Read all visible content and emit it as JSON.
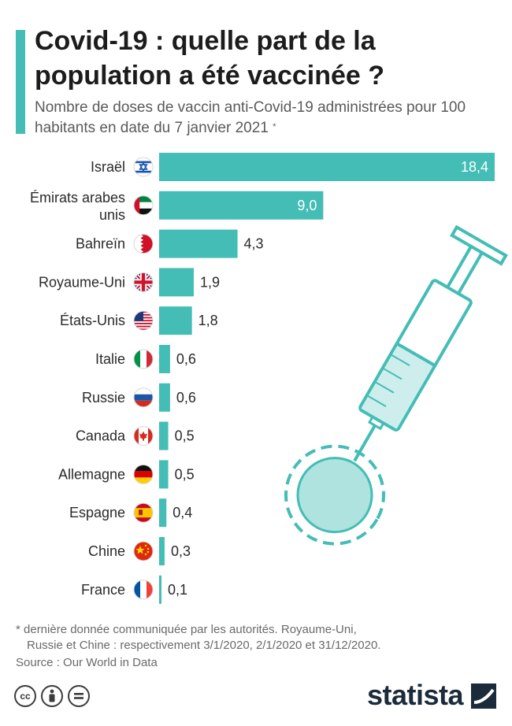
{
  "header": {
    "title": "Covid-19 : quelle part de la population a été vaccinée ?",
    "subtitle": "Nombre de doses de vaccin anti-Covid-19 administrées pour 100 habitants en date du 7 janvier 2021",
    "subtitle_mark": "*"
  },
  "chart_data": {
    "type": "bar",
    "orientation": "horizontal",
    "categories": [
      "Israël",
      "Émirats arabes unis",
      "Bahreïn",
      "Royaume-Uni",
      "États-Unis",
      "Italie",
      "Russie",
      "Canada",
      "Allemagne",
      "Espagne",
      "Chine",
      "France"
    ],
    "values": [
      18.4,
      9.0,
      4.3,
      1.9,
      1.8,
      0.6,
      0.6,
      0.5,
      0.5,
      0.4,
      0.3,
      0.1
    ],
    "value_labels": [
      "18,4",
      "9,0",
      "4,3",
      "1,9",
      "1,8",
      "0,6",
      "0,6",
      "0,5",
      "0,5",
      "0,4",
      "0,3",
      "0,1"
    ],
    "flags": [
      "israel-flag",
      "uae-flag",
      "bahrain-flag",
      "uk-flag",
      "usa-flag",
      "italy-flag",
      "russia-flag",
      "canada-flag",
      "germany-flag",
      "spain-flag",
      "china-flag",
      "france-flag"
    ],
    "title": "Covid-19 : quelle part de la population a été vaccinée ?",
    "xlabel": "",
    "ylabel": "",
    "xlim": [
      0,
      18.4
    ],
    "grid": false,
    "bar_color": "#43bdb5"
  },
  "footer": {
    "note_line1": "* dernière donnée communiquée par les autorités. Royaume-Uni,",
    "note_line2": "Russie et Chine : respectivement 3/1/2020, 2/1/2020 et 31/12/2020.",
    "source": "Source : Our World in Data",
    "brand": "statista",
    "license_icons": [
      "cc-icon",
      "by-icon",
      "nd-icon"
    ]
  },
  "colors": {
    "accent": "#43bdb5",
    "text": "#1f1f1f",
    "muted": "#6a6a6a",
    "brand": "#1c2b3a"
  }
}
